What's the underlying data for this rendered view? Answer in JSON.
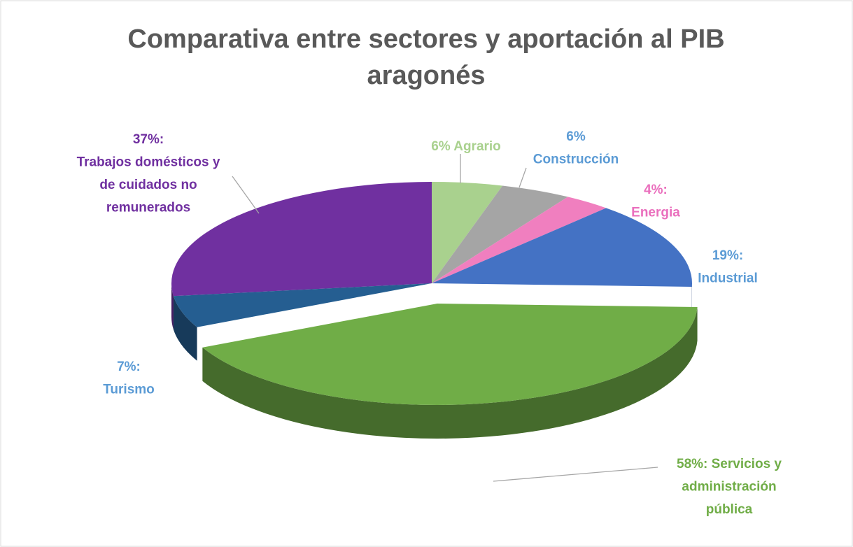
{
  "chart_data": {
    "type": "pie3d",
    "title": [
      "Comparativa entre sectores y aportación al PIB",
      "aragonés"
    ],
    "values": [
      6,
      6,
      4,
      19,
      58,
      7,
      37
    ],
    "value_labels": [
      [
        "6% Agrario"
      ],
      [
        "6%",
        "Construcción"
      ],
      [
        "4%:",
        "Energia"
      ],
      [
        "19%:",
        "Industrial"
      ],
      [
        "58%: Servicios y",
        "administración",
        "pública"
      ],
      [
        "7%:",
        "Turismo"
      ],
      [
        "37%:",
        "Trabajos domésticos y",
        "de cuidados no",
        "remunerados"
      ]
    ],
    "colors": [
      "#a9d18e",
      "#a5a5a5",
      "#f07fbf",
      "#4472c4",
      "#70ad47",
      "#255e91",
      "#7030a0"
    ],
    "label_colors": [
      "#a9d18e",
      "#5b9bd5",
      "#ea6fbd",
      "#5b9bd5",
      "#70ad47",
      "#5b9bd5",
      "#7030a0"
    ],
    "exploded": [
      4
    ]
  }
}
